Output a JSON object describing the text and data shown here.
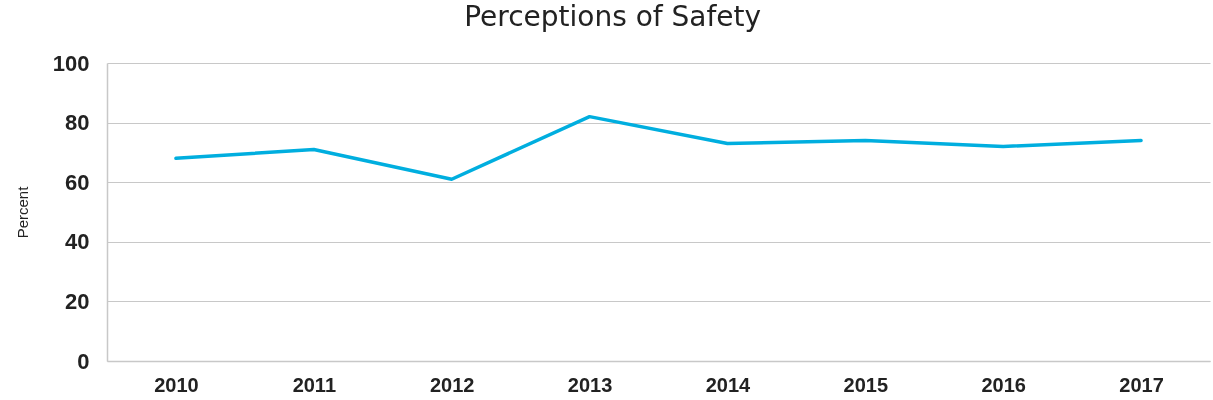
{
  "chart_data": {
    "type": "line",
    "title": "Perceptions of Safety",
    "ylabel": "Percent",
    "categories": [
      "2010",
      "2011",
      "2012",
      "2013",
      "2014",
      "2015",
      "2016",
      "2017"
    ],
    "series": [
      {
        "color": "#00aedf",
        "values": [
          68,
          71,
          61,
          82,
          73,
          74,
          72,
          74
        ]
      }
    ],
    "ylim": [
      0,
      100
    ],
    "yticks": [
      0,
      20,
      40,
      60,
      80,
      100
    ],
    "grid": "y"
  }
}
